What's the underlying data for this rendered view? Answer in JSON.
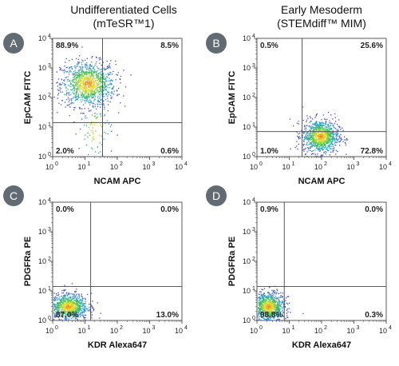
{
  "columns": [
    {
      "title": "Undifferentiated Cells",
      "subtitle": "(mTeSR™1)"
    },
    {
      "title": "Early Mesoderm",
      "subtitle": "(STEMdiff™ MIM)"
    }
  ],
  "chart_data": [
    {
      "type": "scatter",
      "panel": "A",
      "xlabel": "NCAM APC",
      "ylabel": "EpCAM FITC",
      "x_scale": "log",
      "y_scale": "log",
      "xlim": [
        1,
        10000
      ],
      "ylim": [
        1,
        10000
      ],
      "x_gate": 35,
      "y_gate": 14,
      "quadrants": {
        "upper_left": "88.9%",
        "upper_right": "8.5%",
        "lower_left": "2.0%",
        "lower_right": "0.6%"
      },
      "populations": [
        {
          "center": [
            12,
            300
          ],
          "spread": [
            0.42,
            0.38
          ],
          "count": 1100
        },
        {
          "center": [
            20,
            8
          ],
          "spread": [
            0.25,
            0.5
          ],
          "count": 90
        }
      ]
    },
    {
      "type": "scatter",
      "panel": "B",
      "xlabel": "NCAM APC",
      "ylabel": "EpCAM FITC",
      "x_scale": "log",
      "y_scale": "log",
      "xlim": [
        1,
        10000
      ],
      "ylim": [
        1,
        10000
      ],
      "x_gate": 25,
      "y_gate": 7,
      "quadrants": {
        "upper_left": "0.5%",
        "upper_right": "25.6%",
        "lower_left": "1.0%",
        "lower_right": "72.8%"
      },
      "populations": [
        {
          "center": [
            90,
            5
          ],
          "spread": [
            0.28,
            0.28
          ],
          "count": 1000
        }
      ]
    },
    {
      "type": "scatter",
      "panel": "C",
      "xlabel": "KDR Alexa647",
      "ylabel": "PDGFRa PE",
      "x_scale": "log",
      "y_scale": "log",
      "xlim": [
        1,
        10000
      ],
      "ylim": [
        1,
        10000
      ],
      "x_gate": 15,
      "y_gate": 14,
      "quadrants": {
        "upper_left": "0.0%",
        "upper_right": "0.0%",
        "lower_left": "87.0%",
        "lower_right": "13.0%"
      },
      "populations": [
        {
          "center": [
            3,
            3
          ],
          "spread": [
            0.3,
            0.22
          ],
          "count": 900
        }
      ]
    },
    {
      "type": "scatter",
      "panel": "D",
      "xlabel": "KDR Alexa647",
      "ylabel": "PDGFRa PE",
      "x_scale": "log",
      "y_scale": "log",
      "xlim": [
        1,
        10000
      ],
      "ylim": [
        1,
        10000
      ],
      "x_gate": 7,
      "y_gate": 14,
      "quadrants": {
        "upper_left": "0.9%",
        "upper_right": "0.0%",
        "lower_left": "98.8%",
        "lower_right": "0.3%"
      },
      "populations": [
        {
          "center": [
            2.2,
            3
          ],
          "spread": [
            0.25,
            0.25
          ],
          "count": 900
        }
      ]
    }
  ]
}
